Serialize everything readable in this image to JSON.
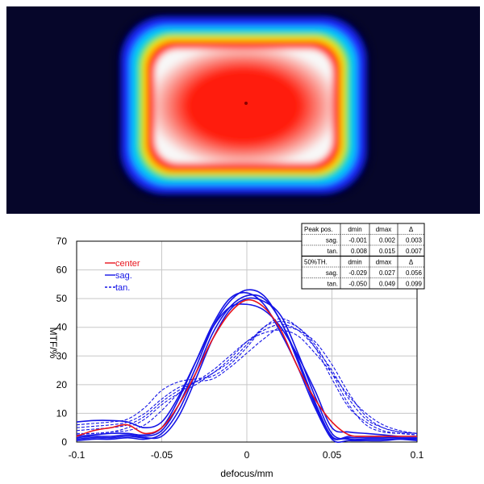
{
  "beam_image": {
    "colors": [
      "#06062a",
      "#1a2cff",
      "#00c8ff",
      "#22e040",
      "#ffee00",
      "#ff8800",
      "#ff1a08",
      "#f8f8f8"
    ]
  },
  "chart_data": {
    "type": "line",
    "xlabel": "defocus/mm",
    "ylabel": "MTF/%",
    "xlim": [
      -0.1,
      0.1
    ],
    "ylim": [
      0,
      70
    ],
    "xticks": [
      "-0.1",
      "-0.05",
      "0",
      "0.05",
      "0.1"
    ],
    "yticks": [
      "0",
      "10",
      "20",
      "30",
      "40",
      "50",
      "60",
      "70"
    ],
    "grid": true,
    "legend_position": "top-left",
    "legend": [
      {
        "label": "center",
        "color": "#e8141c",
        "style": "solid"
      },
      {
        "label": "sag.",
        "color": "#1414e6",
        "style": "solid"
      },
      {
        "label": "tan.",
        "color": "#1414e6",
        "style": "dashed"
      }
    ],
    "series": [
      {
        "name": "center",
        "color": "#e8141c",
        "dash": false,
        "x": [
          -0.1,
          -0.09,
          -0.08,
          -0.07,
          -0.06,
          -0.05,
          -0.04,
          -0.03,
          -0.02,
          -0.01,
          0,
          0.01,
          0.02,
          0.03,
          0.04,
          0.05,
          0.06,
          0.07,
          0.08,
          0.09,
          0.1
        ],
        "y": [
          2,
          4,
          5,
          6,
          3,
          5,
          13,
          24,
          36,
          45,
          49.5,
          47,
          39,
          26,
          15,
          7,
          2.5,
          2,
          2,
          2,
          2
        ]
      },
      {
        "name": "sag.",
        "color": "#1414e6",
        "dash": false,
        "x": [
          -0.1,
          -0.09,
          -0.08,
          -0.07,
          -0.06,
          -0.05,
          -0.04,
          -0.03,
          -0.02,
          -0.01,
          0,
          0.01,
          0.02,
          0.03,
          0.04,
          0.05,
          0.06,
          0.07,
          0.08,
          0.09,
          0.1
        ],
        "y": [
          1.5,
          2,
          2,
          2.5,
          2,
          4,
          13,
          26,
          40,
          49,
          53,
          51,
          42,
          29,
          14,
          2,
          1.5,
          1.5,
          1.5,
          1.5,
          1
        ]
      },
      {
        "name": "sag.",
        "color": "#1414e6",
        "dash": false,
        "x": [
          -0.1,
          -0.09,
          -0.08,
          -0.07,
          -0.06,
          -0.05,
          -0.04,
          -0.03,
          -0.02,
          -0.01,
          0,
          0.01,
          0.02,
          0.03,
          0.04,
          0.05,
          0.06,
          0.07,
          0.08,
          0.09,
          0.1
        ],
        "y": [
          1,
          1.5,
          1.5,
          2,
          1.5,
          2,
          9,
          22,
          36,
          46,
          50,
          49,
          44,
          31,
          16,
          3,
          1,
          1,
          1,
          1,
          0.5
        ]
      },
      {
        "name": "sag.",
        "color": "#1414e6",
        "dash": false,
        "x": [
          -0.1,
          -0.09,
          -0.08,
          -0.07,
          -0.06,
          -0.05,
          -0.04,
          -0.03,
          -0.02,
          -0.01,
          0,
          0.01,
          0.02,
          0.03,
          0.04,
          0.05,
          0.06,
          0.07,
          0.08,
          0.09,
          0.1
        ],
        "y": [
          2,
          2.5,
          3,
          3,
          2.5,
          5,
          15,
          28,
          41,
          50,
          52,
          48,
          38,
          26,
          12,
          1.5,
          2,
          2,
          2,
          1.5,
          1.5
        ]
      },
      {
        "name": "sag.",
        "color": "#1414e6",
        "dash": false,
        "x": [
          -0.1,
          -0.09,
          -0.08,
          -0.07,
          -0.06,
          -0.05,
          -0.04,
          -0.03,
          -0.02,
          -0.01,
          0,
          0.01,
          0.02,
          0.03,
          0.04,
          0.05,
          0.06,
          0.07,
          0.08,
          0.09,
          0.1
        ],
        "y": [
          0.5,
          1,
          1,
          1.5,
          1,
          3,
          11,
          24,
          38,
          47,
          51,
          50,
          42,
          28,
          13,
          1,
          0.5,
          0.5,
          0.5,
          1,
          1
        ]
      },
      {
        "name": "sag.",
        "color": "#1414e6",
        "dash": false,
        "x": [
          -0.1,
          -0.09,
          -0.08,
          -0.07,
          -0.06,
          -0.05,
          -0.04,
          -0.03,
          -0.02,
          -0.01,
          0,
          0.01,
          0.02,
          0.03,
          0.04,
          0.05,
          0.06,
          0.07,
          0.08,
          0.09,
          0.1
        ],
        "y": [
          7,
          7.5,
          7.5,
          7,
          5,
          7,
          16,
          28,
          40,
          47,
          48,
          46,
          40,
          30,
          18,
          5,
          3.5,
          3,
          2.5,
          2,
          2
        ]
      },
      {
        "name": "tan.",
        "color": "#1414e6",
        "dash": true,
        "x": [
          -0.1,
          -0.09,
          -0.08,
          -0.07,
          -0.06,
          -0.05,
          -0.04,
          -0.03,
          -0.02,
          -0.01,
          0,
          0.01,
          0.02,
          0.03,
          0.04,
          0.05,
          0.06,
          0.07,
          0.08,
          0.09,
          0.1
        ],
        "y": [
          6,
          6.5,
          7,
          8,
          12,
          18,
          21,
          22,
          23,
          27,
          33,
          40,
          43,
          40,
          33,
          22,
          12,
          7,
          4,
          3,
          2.5
        ]
      },
      {
        "name": "tan.",
        "color": "#1414e6",
        "dash": true,
        "x": [
          -0.1,
          -0.09,
          -0.08,
          -0.07,
          -0.06,
          -0.05,
          -0.04,
          -0.03,
          -0.02,
          -0.01,
          0,
          0.01,
          0.02,
          0.03,
          0.04,
          0.05,
          0.06,
          0.07,
          0.08,
          0.09,
          0.1
        ],
        "y": [
          4,
          4.5,
          5,
          6,
          9,
          14,
          18,
          21,
          24,
          29,
          35,
          39,
          41,
          39,
          33,
          25,
          15,
          8,
          5,
          3.5,
          3
        ]
      },
      {
        "name": "tan.",
        "color": "#1414e6",
        "dash": true,
        "x": [
          -0.1,
          -0.09,
          -0.08,
          -0.07,
          -0.06,
          -0.05,
          -0.04,
          -0.03,
          -0.02,
          -0.01,
          0,
          0.01,
          0.02,
          0.03,
          0.04,
          0.05,
          0.06,
          0.07,
          0.08,
          0.09,
          0.1
        ],
        "y": [
          3,
          3,
          3.5,
          4,
          6,
          11,
          17,
          21,
          25,
          30,
          35,
          38,
          39,
          37,
          31,
          24,
          16,
          10,
          6,
          4,
          3
        ]
      },
      {
        "name": "tan.",
        "color": "#1414e6",
        "dash": true,
        "x": [
          -0.1,
          -0.09,
          -0.08,
          -0.07,
          -0.06,
          -0.05,
          -0.04,
          -0.03,
          -0.02,
          -0.01,
          0,
          0.01,
          0.02,
          0.03,
          0.04,
          0.05,
          0.06,
          0.07,
          0.08,
          0.09,
          0.1
        ],
        "y": [
          2.5,
          3,
          3.5,
          5,
          8,
          13,
          17,
          20,
          24,
          28,
          34,
          40,
          42,
          40,
          34,
          24,
          13,
          6,
          3.5,
          3,
          2.5
        ]
      },
      {
        "name": "tan.",
        "color": "#1414e6",
        "dash": true,
        "x": [
          -0.1,
          -0.09,
          -0.08,
          -0.07,
          -0.06,
          -0.05,
          -0.04,
          -0.03,
          -0.02,
          -0.01,
          0,
          0.01,
          0.02,
          0.03,
          0.04,
          0.05,
          0.06,
          0.07,
          0.08,
          0.09,
          0.1
        ],
        "y": [
          5,
          5.5,
          6,
          7,
          10,
          15,
          19,
          21,
          22,
          26,
          31,
          36,
          40,
          39,
          35,
          27,
          17,
          9,
          5,
          3.5,
          3
        ]
      }
    ],
    "table": {
      "rows": [
        [
          "Peak pos.",
          "dmin",
          "dmax",
          "Δ"
        ],
        [
          "sag.",
          "-0.001",
          "0.002",
          "0.003"
        ],
        [
          "tan.",
          "0.008",
          "0.015",
          "0.007"
        ],
        [
          "50%TH.",
          "dmin",
          "dmax",
          "Δ"
        ],
        [
          "sag.",
          "-0.029",
          "0.027",
          "0.056"
        ],
        [
          "tan.",
          "-0.050",
          "0.049",
          "0.099"
        ]
      ]
    }
  }
}
